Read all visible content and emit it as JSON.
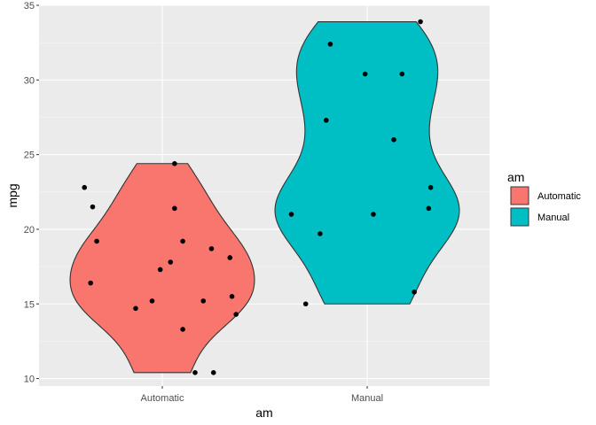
{
  "chart_data": {
    "type": "violin",
    "xlabel": "am",
    "ylabel": "mpg",
    "categories": [
      "Automatic",
      "Manual"
    ],
    "ylim": [
      9.5,
      35
    ],
    "yticks": [
      10,
      15,
      20,
      25,
      30,
      35
    ],
    "grid": true,
    "legend": {
      "title": "am",
      "position": "right",
      "entries": [
        {
          "label": "Automatic",
          "color": "#F8766D"
        },
        {
          "label": "Manual",
          "color": "#00BFC4"
        }
      ]
    },
    "series": [
      {
        "category": "Automatic",
        "color": "#F8766D",
        "violin_range": [
          10.4,
          24.4
        ],
        "points": [
          {
            "jitter": -0.38,
            "mpg": 22.8
          },
          {
            "jitter": -0.34,
            "mpg": 21.5
          },
          {
            "jitter": -0.32,
            "mpg": 19.2
          },
          {
            "jitter": -0.35,
            "mpg": 16.4
          },
          {
            "jitter": -0.13,
            "mpg": 14.7
          },
          {
            "jitter": -0.05,
            "mpg": 15.2
          },
          {
            "jitter": -0.01,
            "mpg": 17.3
          },
          {
            "jitter": 0.04,
            "mpg": 17.8
          },
          {
            "jitter": 0.06,
            "mpg": 24.4
          },
          {
            "jitter": 0.06,
            "mpg": 21.4
          },
          {
            "jitter": 0.1,
            "mpg": 19.2
          },
          {
            "jitter": 0.1,
            "mpg": 13.3
          },
          {
            "jitter": 0.16,
            "mpg": 10.4
          },
          {
            "jitter": 0.2,
            "mpg": 15.2
          },
          {
            "jitter": 0.25,
            "mpg": 10.4
          },
          {
            "jitter": 0.24,
            "mpg": 18.7
          },
          {
            "jitter": 0.33,
            "mpg": 18.1
          },
          {
            "jitter": 0.34,
            "mpg": 15.5
          },
          {
            "jitter": 0.36,
            "mpg": 14.3
          }
        ]
      },
      {
        "category": "Manual",
        "color": "#00BFC4",
        "violin_range": [
          15.0,
          33.9
        ],
        "points": [
          {
            "jitter": -0.37,
            "mpg": 21.0
          },
          {
            "jitter": -0.3,
            "mpg": 15.0
          },
          {
            "jitter": -0.23,
            "mpg": 19.7
          },
          {
            "jitter": -0.2,
            "mpg": 27.3
          },
          {
            "jitter": -0.18,
            "mpg": 32.4
          },
          {
            "jitter": -0.01,
            "mpg": 30.4
          },
          {
            "jitter": 0.03,
            "mpg": 21.0
          },
          {
            "jitter": 0.13,
            "mpg": 26.0
          },
          {
            "jitter": 0.17,
            "mpg": 30.4
          },
          {
            "jitter": 0.23,
            "mpg": 15.8
          },
          {
            "jitter": 0.26,
            "mpg": 33.9
          },
          {
            "jitter": 0.3,
            "mpg": 21.4
          },
          {
            "jitter": 0.31,
            "mpg": 22.8
          }
        ]
      }
    ]
  }
}
